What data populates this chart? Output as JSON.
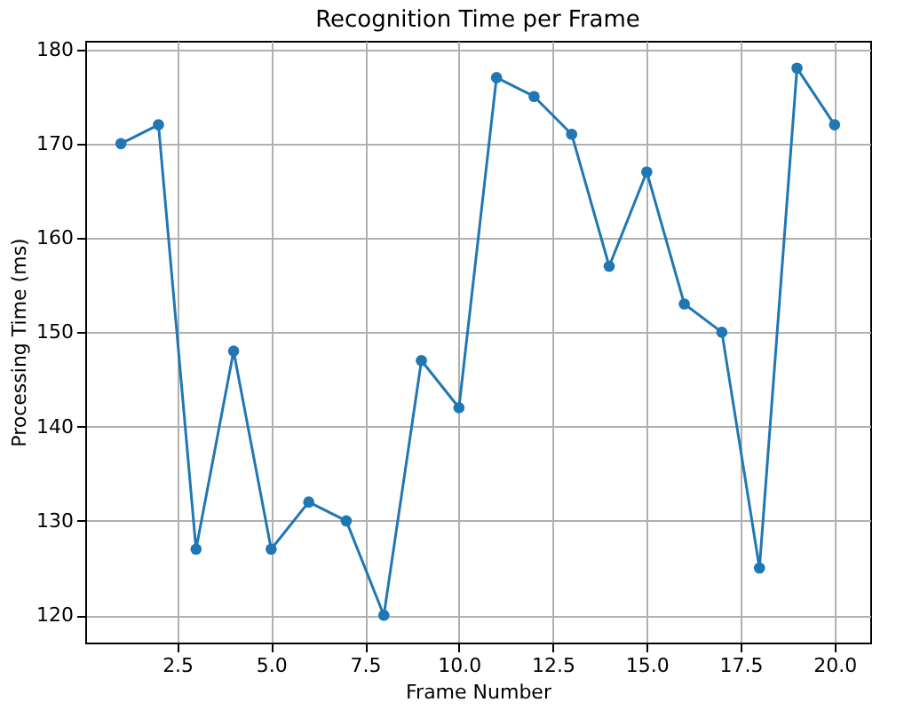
{
  "chart_data": {
    "type": "line",
    "title": "Recognition Time per Frame",
    "xlabel": "Frame Number",
    "ylabel": "Processing Time (ms)",
    "x": [
      1,
      2,
      3,
      4,
      5,
      6,
      7,
      8,
      9,
      10,
      11,
      12,
      13,
      14,
      15,
      16,
      17,
      18,
      19,
      20
    ],
    "series": [
      {
        "color": "#1f77b4",
        "values": [
          170,
          172,
          127,
          148,
          127,
          132,
          130,
          120,
          147,
          142,
          177,
          175,
          171,
          157,
          167,
          153,
          150,
          125,
          178,
          172
        ]
      }
    ],
    "xlim": [
      0.05,
      20.95
    ],
    "ylim": [
      117.1,
      180.9
    ],
    "xticks": [
      {
        "value": 2.5,
        "label": "2.5"
      },
      {
        "value": 5,
        "label": "5.0"
      },
      {
        "value": 7.5,
        "label": "7.5"
      },
      {
        "value": 10,
        "label": "10.0"
      },
      {
        "value": 12.5,
        "label": "12.5"
      },
      {
        "value": 15,
        "label": "15.0"
      },
      {
        "value": 17.5,
        "label": "17.5"
      },
      {
        "value": 20,
        "label": "20.0"
      }
    ],
    "yticks": [
      120,
      130,
      140,
      150,
      160,
      170,
      180
    ],
    "grid": true,
    "marker": "circle",
    "line_style": "solid"
  }
}
